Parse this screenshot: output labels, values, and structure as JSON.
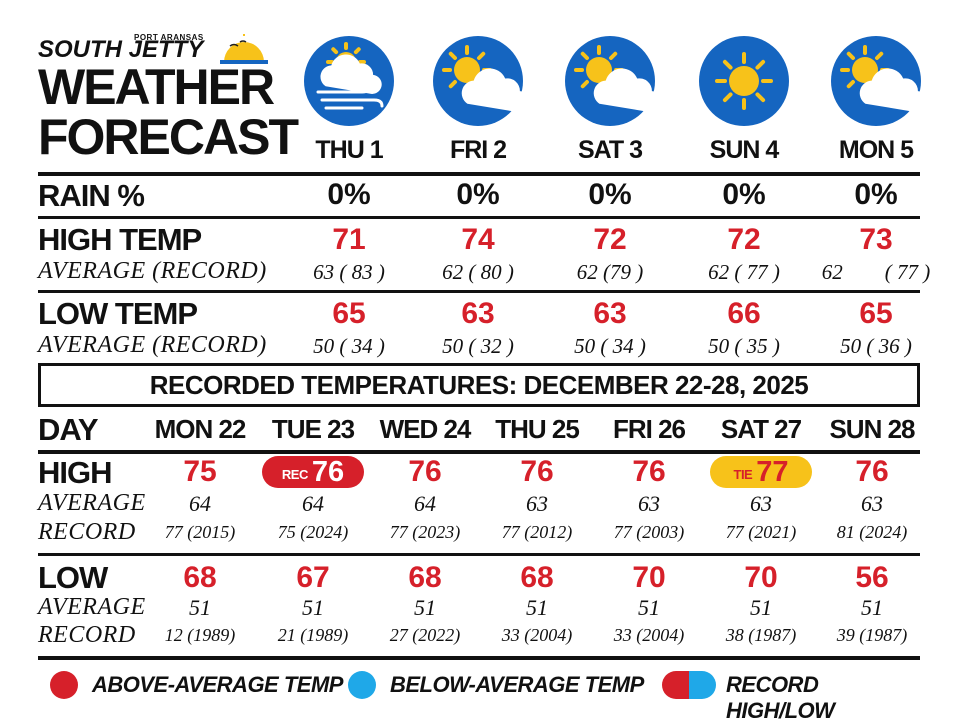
{
  "brand": {
    "top_small": "PORT ARANSAS",
    "name": "SOUTH JETTY",
    "title_line1": "WEATHER",
    "title_line2": "FORECAST"
  },
  "forecast": {
    "days": [
      {
        "label": "THU 1",
        "icon": "sun-cloud-wind-icon",
        "rain": "0%",
        "high": "71",
        "high_avg_record": "63 ( 83 )",
        "low": "65",
        "low_avg_record": "50 ( 34 )"
      },
      {
        "label": "FRI 2",
        "icon": "sun-behind-cloud-icon",
        "rain": "0%",
        "high": "74",
        "high_avg_record": "62 ( 80 )",
        "low": "63",
        "low_avg_record": "50 ( 32 )"
      },
      {
        "label": "SAT 3",
        "icon": "sun-behind-cloud-icon",
        "rain": "0%",
        "high": "72",
        "high_avg_record": "62 (79 )",
        "low": "63",
        "low_avg_record": "50 ( 34 )"
      },
      {
        "label": "SUN 4",
        "icon": "sun-icon",
        "rain": "0%",
        "high": "72",
        "high_avg_record": "62 ( 77 )",
        "low": "66",
        "low_avg_record": "50 ( 35 )"
      },
      {
        "label": "MON 5",
        "icon": "sun-behind-cloud-icon",
        "rain": "0%",
        "high": "73",
        "high_avg_record": "62        ( 77 )",
        "low": "65",
        "low_avg_record": "50 ( 36 )"
      }
    ],
    "labels": {
      "rain": "RAIN %",
      "high": "HIGH TEMP",
      "low": "LOW TEMP",
      "avg_record": "AVERAGE (RECORD)"
    }
  },
  "recorded": {
    "banner": "RECORDED TEMPERATURES: DECEMBER 22-28, 2025",
    "labels": {
      "day": "DAY",
      "high": "HIGH",
      "low": "LOW",
      "average": "AVERAGE",
      "record": "RECORD"
    },
    "days": [
      {
        "label": "MON 22",
        "high": "75",
        "high_avg": "64",
        "high_record": "77 (2015)",
        "low": "68",
        "low_avg": "51",
        "low_record": "12 (1989)"
      },
      {
        "label": "TUE 23",
        "high": "76",
        "high_badge": "REC",
        "high_avg": "64",
        "high_record": "75 (2024)",
        "low": "67",
        "low_avg": "51",
        "low_record": "21 (1989)"
      },
      {
        "label": "WED 24",
        "high": "76",
        "high_avg": "64",
        "high_record": "77 (2023)",
        "low": "68",
        "low_avg": "51",
        "low_record": "27 (2022)"
      },
      {
        "label": "THU 25",
        "high": "76",
        "high_avg": "63",
        "high_record": "77 (2012)",
        "low": "68",
        "low_avg": "51",
        "low_record": "33 (2004)"
      },
      {
        "label": "FRI 26",
        "high": "76",
        "high_avg": "63",
        "high_record": "77 (2003)",
        "low": "70",
        "low_avg": "51",
        "low_record": "33 (2004)"
      },
      {
        "label": "SAT 27",
        "high": "77",
        "high_badge": "TIE",
        "high_avg": "63",
        "high_record": "77 (2021)",
        "low": "70",
        "low_avg": "51",
        "low_record": "38 (1987)"
      },
      {
        "label": "SUN 28",
        "high": "76",
        "high_avg": "63",
        "high_record": "81 (2024)",
        "low": "56",
        "low_avg": "51",
        "low_record": "39 (1987)"
      }
    ]
  },
  "legend": {
    "above": "ABOVE-AVERAGE TEMP",
    "below": "BELOW-AVERAGE TEMP",
    "record": "RECORD HIGH/LOW"
  },
  "colors": {
    "red": "#d6202a",
    "blue": "#1fa8e8",
    "icon_bg": "#1565c0",
    "tie_yellow": "#f7c21a"
  }
}
